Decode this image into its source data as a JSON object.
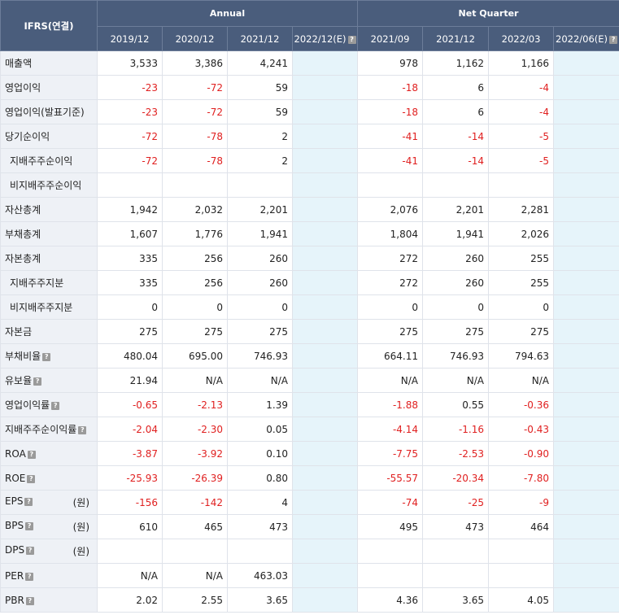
{
  "header": {
    "corner": "IFRS(연결)",
    "groups": [
      "Annual",
      "Net Quarter"
    ],
    "periods": [
      "2019/12",
      "2020/12",
      "2021/12",
      "2022/12(E)",
      "2021/09",
      "2021/12",
      "2022/03",
      "2022/06(E)"
    ]
  },
  "rows": [
    {
      "label": "매출액",
      "values": [
        "3,533",
        "3,386",
        "4,241",
        "",
        "978",
        "1,162",
        "1,166",
        ""
      ]
    },
    {
      "label": "영업이익",
      "values": [
        "-23",
        "-72",
        "59",
        "",
        "-18",
        "6",
        "-4",
        ""
      ]
    },
    {
      "label": "영업이익(발표기준)",
      "values": [
        "-23",
        "-72",
        "59",
        "",
        "-18",
        "6",
        "-4",
        ""
      ]
    },
    {
      "label": "당기순이익",
      "values": [
        "-72",
        "-78",
        "2",
        "",
        "-41",
        "-14",
        "-5",
        ""
      ]
    },
    {
      "label": "지배주주순이익",
      "sub": true,
      "values": [
        "-72",
        "-78",
        "2",
        "",
        "-41",
        "-14",
        "-5",
        ""
      ]
    },
    {
      "label": "비지배주주순이익",
      "sub": true,
      "values": [
        "",
        "",
        "",
        "",
        "",
        "",
        "",
        ""
      ]
    },
    {
      "label": "자산총계",
      "values": [
        "1,942",
        "2,032",
        "2,201",
        "",
        "2,076",
        "2,201",
        "2,281",
        ""
      ]
    },
    {
      "label": "부채총계",
      "values": [
        "1,607",
        "1,776",
        "1,941",
        "",
        "1,804",
        "1,941",
        "2,026",
        ""
      ]
    },
    {
      "label": "자본총계",
      "values": [
        "335",
        "256",
        "260",
        "",
        "272",
        "260",
        "255",
        ""
      ]
    },
    {
      "label": "지배주주지분",
      "sub": true,
      "values": [
        "335",
        "256",
        "260",
        "",
        "272",
        "260",
        "255",
        ""
      ]
    },
    {
      "label": "비지배주주지분",
      "sub": true,
      "values": [
        "0",
        "0",
        "0",
        "",
        "0",
        "0",
        "0",
        ""
      ]
    },
    {
      "label": "자본금",
      "values": [
        "275",
        "275",
        "275",
        "",
        "275",
        "275",
        "275",
        ""
      ]
    },
    {
      "label": "부채비율",
      "help": true,
      "values": [
        "480.04",
        "695.00",
        "746.93",
        "",
        "664.11",
        "746.93",
        "794.63",
        ""
      ]
    },
    {
      "label": "유보율",
      "help": true,
      "values": [
        "21.94",
        "N/A",
        "N/A",
        "",
        "N/A",
        "N/A",
        "N/A",
        ""
      ]
    },
    {
      "label": "영업이익률",
      "help": true,
      "values": [
        "-0.65",
        "-2.13",
        "1.39",
        "",
        "-1.88",
        "0.55",
        "-0.36",
        ""
      ]
    },
    {
      "label": "지배주주순이익률",
      "help": true,
      "values": [
        "-2.04",
        "-2.30",
        "0.05",
        "",
        "-4.14",
        "-1.16",
        "-0.43",
        ""
      ]
    },
    {
      "label": "ROA",
      "help": true,
      "values": [
        "-3.87",
        "-3.92",
        "0.10",
        "",
        "-7.75",
        "-2.53",
        "-0.90",
        ""
      ]
    },
    {
      "label": "ROE",
      "help": true,
      "values": [
        "-25.93",
        "-26.39",
        "0.80",
        "",
        "-55.57",
        "-20.34",
        "-7.80",
        ""
      ]
    },
    {
      "label": "EPS",
      "help": true,
      "unit": "(원)",
      "values": [
        "-156",
        "-142",
        "4",
        "",
        "-74",
        "-25",
        "-9",
        ""
      ]
    },
    {
      "label": "BPS",
      "help": true,
      "unit": "(원)",
      "values": [
        "610",
        "465",
        "473",
        "",
        "495",
        "473",
        "464",
        ""
      ]
    },
    {
      "label": "DPS",
      "help": true,
      "unit": "(원)",
      "values": [
        "",
        "",
        "",
        "",
        "",
        "",
        "",
        ""
      ]
    },
    {
      "label": "PER",
      "help": true,
      "values": [
        "N/A",
        "N/A",
        "463.03",
        "",
        "",
        "",
        "",
        ""
      ]
    },
    {
      "label": "PBR",
      "help": true,
      "values": [
        "2.02",
        "2.55",
        "3.65",
        "",
        "4.36",
        "3.65",
        "4.05",
        ""
      ]
    }
  ],
  "colors": {
    "header_bg": "#4a5d7c",
    "label_bg": "#eef1f6",
    "estimate_bg": "#e6f4fa",
    "negative": "#e02020"
  },
  "icons": {
    "help": "question-icon"
  }
}
